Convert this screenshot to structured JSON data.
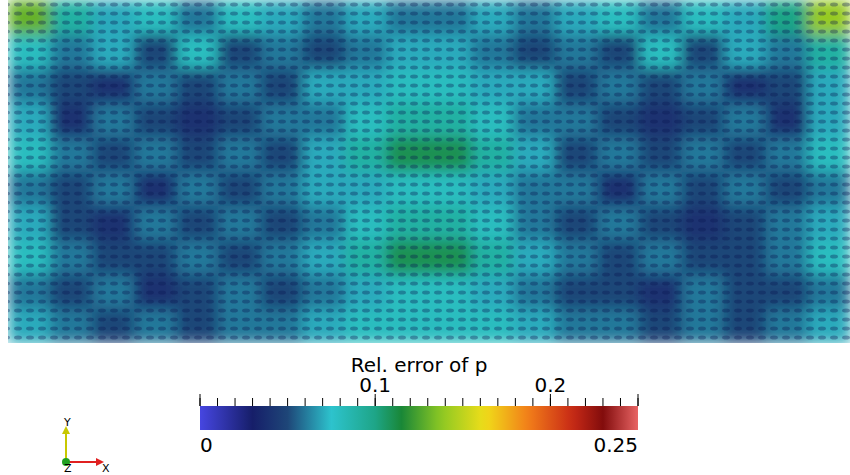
{
  "chart_data": {
    "type": "heatmap",
    "title": "Rel. error of p",
    "cells": [
      [
        0.13,
        0.09,
        0.07,
        0.08,
        0.06,
        0.08,
        0.07,
        0.06,
        0.07,
        0.06,
        0.06,
        0.07,
        0.06,
        0.07,
        0.08,
        0.06,
        0.08,
        0.07,
        0.1,
        0.14
      ],
      [
        0.08,
        0.06,
        0.07,
        0.05,
        0.08,
        0.05,
        0.06,
        0.05,
        0.06,
        0.07,
        0.07,
        0.06,
        0.05,
        0.06,
        0.05,
        0.08,
        0.05,
        0.07,
        0.06,
        0.09
      ],
      [
        0.06,
        0.05,
        0.04,
        0.06,
        0.05,
        0.06,
        0.05,
        0.07,
        0.07,
        0.08,
        0.08,
        0.07,
        0.07,
        0.05,
        0.06,
        0.05,
        0.06,
        0.04,
        0.05,
        0.07
      ],
      [
        0.07,
        0.04,
        0.06,
        0.05,
        0.04,
        0.05,
        0.06,
        0.06,
        0.08,
        0.09,
        0.09,
        0.08,
        0.06,
        0.06,
        0.05,
        0.04,
        0.05,
        0.06,
        0.04,
        0.07
      ],
      [
        0.08,
        0.06,
        0.05,
        0.06,
        0.05,
        0.06,
        0.05,
        0.07,
        0.09,
        0.11,
        0.11,
        0.09,
        0.07,
        0.05,
        0.06,
        0.05,
        0.06,
        0.05,
        0.06,
        0.08
      ],
      [
        0.06,
        0.05,
        0.06,
        0.04,
        0.06,
        0.05,
        0.06,
        0.07,
        0.07,
        0.08,
        0.08,
        0.07,
        0.06,
        0.06,
        0.04,
        0.06,
        0.05,
        0.06,
        0.05,
        0.06
      ],
      [
        0.07,
        0.05,
        0.04,
        0.06,
        0.05,
        0.06,
        0.05,
        0.06,
        0.08,
        0.09,
        0.09,
        0.08,
        0.06,
        0.05,
        0.06,
        0.05,
        0.04,
        0.05,
        0.06,
        0.07
      ],
      [
        0.08,
        0.06,
        0.05,
        0.05,
        0.06,
        0.05,
        0.06,
        0.07,
        0.09,
        0.11,
        0.11,
        0.09,
        0.07,
        0.06,
        0.05,
        0.06,
        0.05,
        0.05,
        0.06,
        0.08
      ],
      [
        0.06,
        0.05,
        0.06,
        0.04,
        0.05,
        0.06,
        0.05,
        0.06,
        0.07,
        0.08,
        0.08,
        0.07,
        0.06,
        0.05,
        0.05,
        0.04,
        0.06,
        0.05,
        0.05,
        0.06
      ],
      [
        0.07,
        0.06,
        0.05,
        0.06,
        0.05,
        0.06,
        0.06,
        0.07,
        0.08,
        0.08,
        0.08,
        0.08,
        0.07,
        0.06,
        0.06,
        0.05,
        0.06,
        0.05,
        0.06,
        0.07
      ]
    ],
    "colorbar_range": [
      0,
      0.25
    ],
    "colorbar_ticks": [
      0,
      0.1,
      0.2,
      0.25
    ],
    "colorbar_minor_ticks": [
      0,
      0.01,
      0.02,
      0.03,
      0.04,
      0.05,
      0.06,
      0.07,
      0.08,
      0.09,
      0.1,
      0.11,
      0.12,
      0.13,
      0.14,
      0.15,
      0.16,
      0.17,
      0.18,
      0.19,
      0.2,
      0.21,
      0.22,
      0.23,
      0.24,
      0.25
    ]
  },
  "axes_triad": {
    "labels": [
      "Y",
      "Z",
      "X"
    ]
  }
}
